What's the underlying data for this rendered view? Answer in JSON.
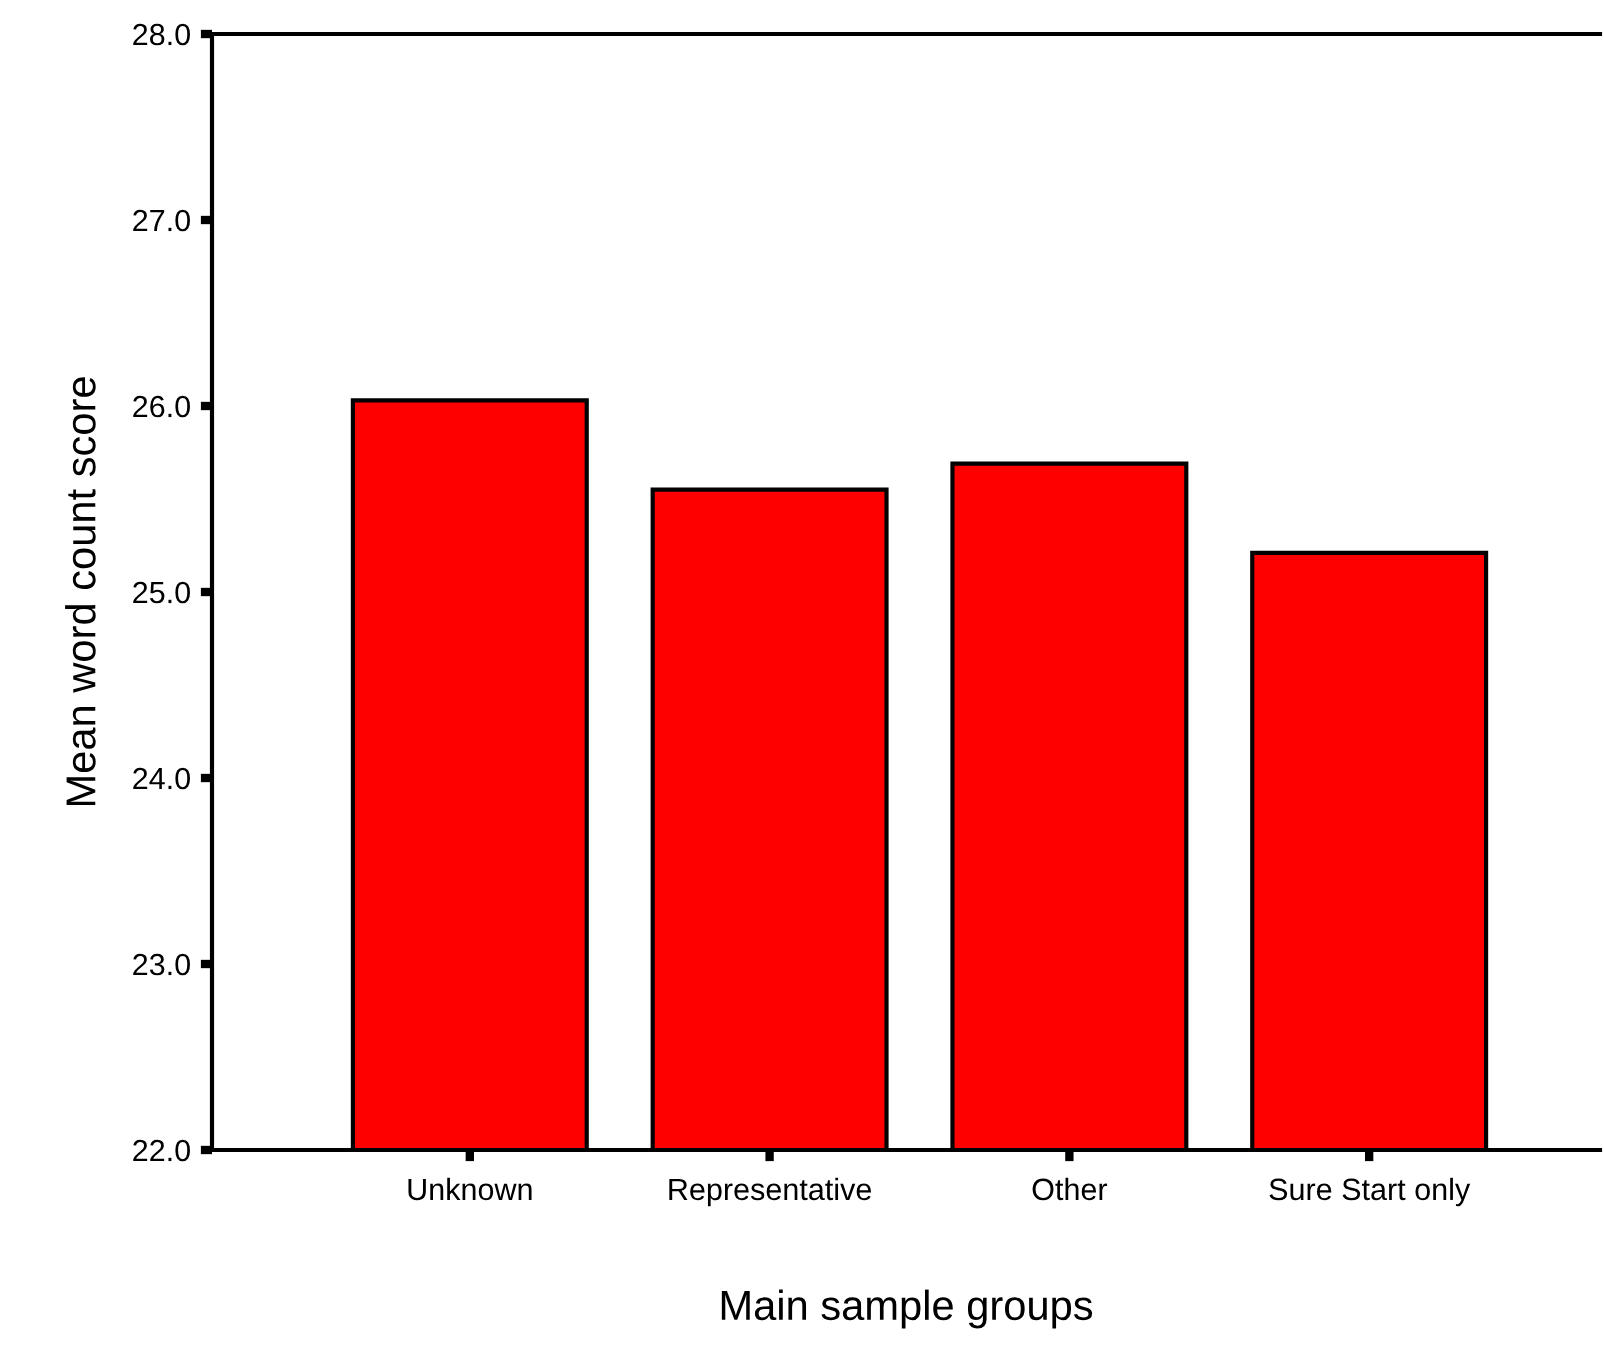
{
  "chart_data": {
    "type": "bar",
    "xlabel": "Main sample groups",
    "ylabel": "Mean word count score",
    "categories": [
      "Unknown",
      "Representative",
      "Other",
      "Sure Start only"
    ],
    "values": [
      26.03,
      25.55,
      25.69,
      25.21
    ],
    "color": "#ff0000",
    "ylim": [
      22.0,
      28.0
    ],
    "yticks": [
      {
        "value": 22,
        "label": "22.0"
      },
      {
        "value": 23,
        "label": "23.0"
      },
      {
        "value": 24,
        "label": "24.0"
      },
      {
        "value": 25,
        "label": "25.0"
      },
      {
        "value": 26,
        "label": "26.0"
      },
      {
        "value": 27,
        "label": "27.0"
      },
      {
        "value": 28,
        "label": "28.0"
      }
    ],
    "grid": false
  }
}
